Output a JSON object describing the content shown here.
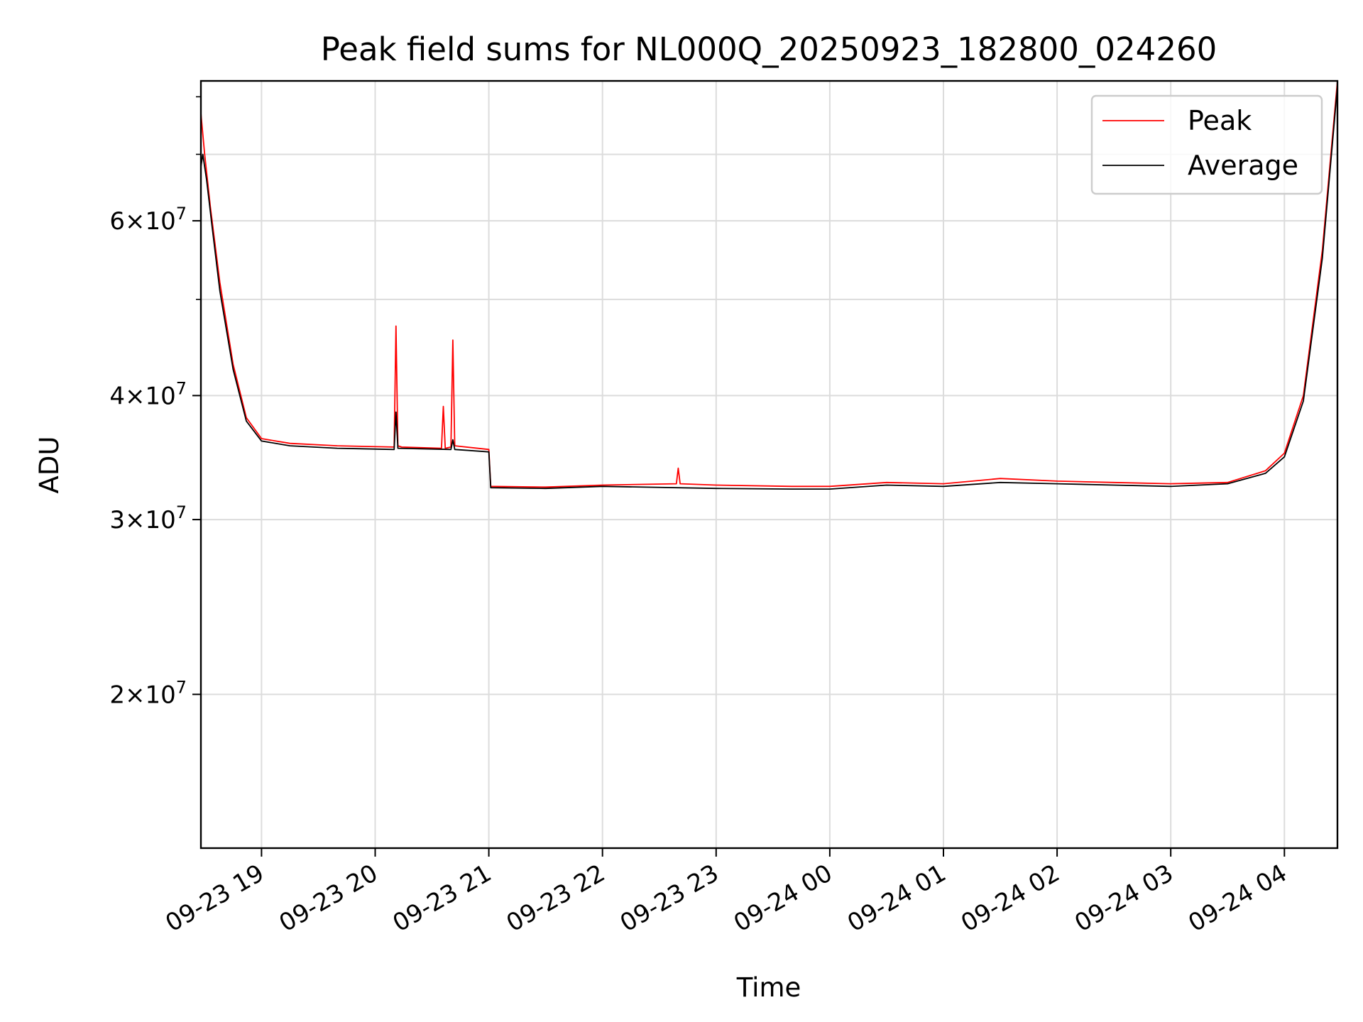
{
  "chart_data": {
    "type": "line",
    "title": "Peak field sums for NL000Q_20250923_182800_024260",
    "xlabel": "Time",
    "ylabel": "ADU",
    "x_ticks": [
      "09-23 19",
      "09-23 20",
      "09-23 21",
      "09-23 22",
      "09-23 23",
      "09-24 00",
      "09-24 01",
      "09-24 02",
      "09-24 03",
      "09-24 04"
    ],
    "y_ticks": [
      {
        "value": 20000000,
        "label": "2×10^7"
      },
      {
        "value": 30000000,
        "label": "3×10^7"
      },
      {
        "value": 40000000,
        "label": "4×10^7"
      },
      {
        "value": 60000000,
        "label": "6×10^7"
      }
    ],
    "y_minor_ticks": [
      50000000,
      70000000
    ],
    "yscale": "log",
    "xlim": [
      "2025-09-23 18:28",
      "2025-09-24 04:28"
    ],
    "ylim": [
      14000000,
      83000000
    ],
    "grid": true,
    "legend_position": "top-right",
    "series": [
      {
        "name": "Peak",
        "color": "#ff0000",
        "x": [
          "2025-09-23 18:28",
          "2025-09-23 18:30",
          "2025-09-23 18:33",
          "2025-09-23 18:38",
          "2025-09-23 18:45",
          "2025-09-23 18:52",
          "2025-09-23 19:00",
          "2025-09-23 19:15",
          "2025-09-23 19:40",
          "2025-09-23 20:10",
          "2025-09-23 20:11",
          "2025-09-23 20:12",
          "2025-09-23 20:14",
          "2025-09-23 20:35",
          "2025-09-23 20:36",
          "2025-09-23 20:37",
          "2025-09-23 20:40",
          "2025-09-23 20:41",
          "2025-09-23 20:42",
          "2025-09-23 21:00",
          "2025-09-23 21:01",
          "2025-09-23 21:30",
          "2025-09-23 22:00",
          "2025-09-23 22:39",
          "2025-09-23 22:40",
          "2025-09-23 22:41",
          "2025-09-23 23:00",
          "2025-09-23 23:40",
          "2025-09-24 00:00",
          "2025-09-24 00:30",
          "2025-09-24 01:00",
          "2025-09-24 01:30",
          "2025-09-24 02:00",
          "2025-09-24 02:30",
          "2025-09-24 03:00",
          "2025-09-24 03:30",
          "2025-09-24 03:50",
          "2025-09-24 04:00",
          "2025-09-24 04:10",
          "2025-09-24 04:20",
          "2025-09-24 04:28"
        ],
        "y": [
          77000000,
          70000000,
          62000000,
          52000000,
          43000000,
          38000000,
          36200000,
          35800000,
          35600000,
          35500000,
          47000000,
          35600000,
          35500000,
          35400000,
          39000000,
          35400000,
          35500000,
          45500000,
          35600000,
          35300000,
          32400000,
          32350000,
          32500000,
          32600000,
          33800000,
          32600000,
          32500000,
          32400000,
          32400000,
          32700000,
          32600000,
          33000000,
          32800000,
          32700000,
          32600000,
          32700000,
          33600000,
          35000000,
          40000000,
          56000000,
          83000000
        ]
      },
      {
        "name": "Average",
        "color": "#000000",
        "x": [
          "2025-09-23 18:28",
          "2025-09-23 18:29",
          "2025-09-23 18:31",
          "2025-09-23 18:34",
          "2025-09-23 18:38",
          "2025-09-23 18:45",
          "2025-09-23 18:52",
          "2025-09-23 19:00",
          "2025-09-23 19:15",
          "2025-09-23 19:40",
          "2025-09-23 20:10",
          "2025-09-23 20:11",
          "2025-09-23 20:12",
          "2025-09-23 20:40",
          "2025-09-23 20:41",
          "2025-09-23 20:42",
          "2025-09-23 21:00",
          "2025-09-23 21:01",
          "2025-09-23 21:30",
          "2025-09-23 22:00",
          "2025-09-23 23:00",
          "2025-09-23 23:40",
          "2025-09-24 00:00",
          "2025-09-24 00:30",
          "2025-09-24 01:00",
          "2025-09-24 01:30",
          "2025-09-24 02:00",
          "2025-09-24 02:30",
          "2025-09-24 03:00",
          "2025-09-24 03:30",
          "2025-09-24 03:50",
          "2025-09-24 04:00",
          "2025-09-24 04:10",
          "2025-09-24 04:20",
          "2025-09-24 04:28"
        ],
        "y": [
          68000000,
          70000000,
          66000000,
          59000000,
          51000000,
          42500000,
          37700000,
          36000000,
          35600000,
          35400000,
          35300000,
          38500000,
          35400000,
          35300000,
          36100000,
          35300000,
          35100000,
          32300000,
          32250000,
          32400000,
          32250000,
          32200000,
          32200000,
          32500000,
          32400000,
          32700000,
          32600000,
          32500000,
          32400000,
          32600000,
          33400000,
          34700000,
          39500000,
          55000000,
          82000000
        ]
      }
    ]
  }
}
